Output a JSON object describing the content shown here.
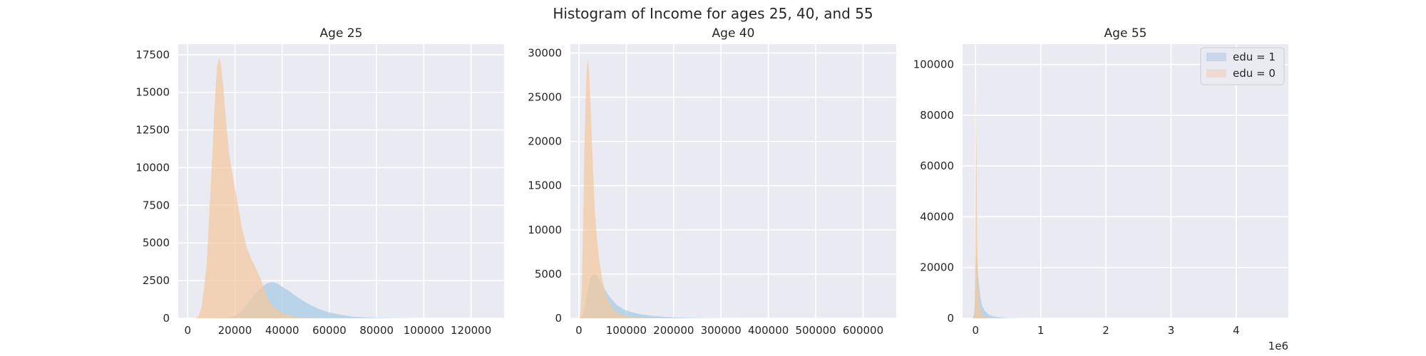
{
  "figure": {
    "title": "Histogram of Income for ages 25, 40, and 55"
  },
  "colors": {
    "edu_1": "#a6cbe3",
    "edu_0": "#f4c99e",
    "legend_edu_1": "#c9d6ea",
    "legend_edu_0": "#efd9d3"
  },
  "chart_data": [
    {
      "type": "histogram",
      "title": "Age 25",
      "xlabel": "",
      "ylabel": "",
      "xlim": [
        -4000,
        134000
      ],
      "ylim": [
        0,
        18200
      ],
      "xticks": [
        0,
        20000,
        40000,
        60000,
        80000,
        100000,
        120000
      ],
      "xtick_labels": [
        "0",
        "20000",
        "40000",
        "60000",
        "80000",
        "100000",
        "120000"
      ],
      "yticks": [
        0,
        2500,
        5000,
        7500,
        10000,
        12500,
        15000,
        17500
      ],
      "ytick_labels": [
        "0",
        "2500",
        "5000",
        "7500",
        "10000",
        "12500",
        "15000",
        "17500"
      ],
      "grid": true,
      "series": [
        {
          "name": "edu = 1",
          "color_key": "edu_1",
          "points": [
            [
              12000,
              0
            ],
            [
              17000,
              30
            ],
            [
              20000,
              150
            ],
            [
              23000,
              500
            ],
            [
              26000,
              1100
            ],
            [
              29000,
              1700
            ],
            [
              32000,
              2150
            ],
            [
              34000,
              2350
            ],
            [
              36000,
              2400
            ],
            [
              38000,
              2300
            ],
            [
              40000,
              2100
            ],
            [
              43000,
              1800
            ],
            [
              46000,
              1450
            ],
            [
              50000,
              1050
            ],
            [
              55000,
              650
            ],
            [
              60000,
              380
            ],
            [
              65000,
              220
            ],
            [
              70000,
              110
            ],
            [
              75000,
              60
            ],
            [
              80000,
              30
            ],
            [
              90000,
              10
            ],
            [
              100000,
              0
            ]
          ]
        },
        {
          "name": "edu = 0",
          "color_key": "edu_0",
          "points": [
            [
              3000,
              0
            ],
            [
              4500,
              100
            ],
            [
              6000,
              800
            ],
            [
              8000,
              3500
            ],
            [
              10000,
              9500
            ],
            [
              11500,
              14500
            ],
            [
              12500,
              16800
            ],
            [
              13300,
              17300
            ],
            [
              14000,
              17000
            ],
            [
              15000,
              15500
            ],
            [
              16000,
              13500
            ],
            [
              17500,
              11000
            ],
            [
              19000,
              9500
            ],
            [
              21000,
              7800
            ],
            [
              23000,
              6000
            ],
            [
              25000,
              4700
            ],
            [
              27000,
              3900
            ],
            [
              29000,
              3300
            ],
            [
              31000,
              2600
            ],
            [
              33000,
              1700
            ],
            [
              35000,
              1000
            ],
            [
              38000,
              550
            ],
            [
              42000,
              250
            ],
            [
              46000,
              100
            ],
            [
              50000,
              30
            ],
            [
              55000,
              0
            ]
          ]
        }
      ]
    },
    {
      "type": "histogram",
      "title": "Age 40",
      "xlabel": "",
      "ylabel": "",
      "xlim": [
        -18000,
        670000
      ],
      "ylim": [
        0,
        31000
      ],
      "xticks": [
        0,
        100000,
        200000,
        300000,
        400000,
        500000,
        600000
      ],
      "xtick_labels": [
        "0",
        "100000",
        "200000",
        "300000",
        "400000",
        "500000",
        "600000"
      ],
      "yticks": [
        0,
        5000,
        10000,
        15000,
        20000,
        25000,
        30000
      ],
      "ytick_labels": [
        "0",
        "5000",
        "10000",
        "15000",
        "20000",
        "25000",
        "30000"
      ],
      "grid": true,
      "series": [
        {
          "name": "edu = 1",
          "color_key": "edu_1",
          "points": [
            [
              2000,
              0
            ],
            [
              8000,
              300
            ],
            [
              12000,
              1200
            ],
            [
              18000,
              3000
            ],
            [
              24000,
              4600
            ],
            [
              30000,
              5000
            ],
            [
              36000,
              4900
            ],
            [
              42000,
              4500
            ],
            [
              50000,
              3700
            ],
            [
              60000,
              2800
            ],
            [
              70000,
              2100
            ],
            [
              80000,
              1500
            ],
            [
              95000,
              1000
            ],
            [
              110000,
              700
            ],
            [
              130000,
              450
            ],
            [
              150000,
              300
            ],
            [
              175000,
              180
            ],
            [
              200000,
              100
            ],
            [
              240000,
              40
            ],
            [
              300000,
              10
            ],
            [
              350000,
              0
            ]
          ]
        },
        {
          "name": "edu = 0",
          "color_key": "edu_0",
          "points": [
            [
              0,
              0
            ],
            [
              3000,
              400
            ],
            [
              6000,
              3000
            ],
            [
              9000,
              11000
            ],
            [
              12000,
              20000
            ],
            [
              15000,
              26500
            ],
            [
              18000,
              29200
            ],
            [
              21000,
              28500
            ],
            [
              24000,
              25000
            ],
            [
              27000,
              20500
            ],
            [
              30000,
              16500
            ],
            [
              34000,
              12000
            ],
            [
              38000,
              9000
            ],
            [
              43000,
              6500
            ],
            [
              50000,
              4200
            ],
            [
              58000,
              2500
            ],
            [
              66000,
              1600
            ],
            [
              75000,
              900
            ],
            [
              85000,
              500
            ],
            [
              100000,
              250
            ],
            [
              120000,
              100
            ],
            [
              150000,
              30
            ],
            [
              180000,
              0
            ]
          ]
        }
      ]
    },
    {
      "type": "histogram",
      "title": "Age 55",
      "xlabel": "",
      "ylabel": "",
      "x_offset_label": "1e6",
      "xlim": [
        -200000,
        4800000
      ],
      "ylim": [
        0,
        108000
      ],
      "xticks": [
        0,
        1000000,
        2000000,
        3000000,
        4000000
      ],
      "xtick_labels": [
        "0",
        "1",
        "2",
        "3",
        "4"
      ],
      "yticks": [
        0,
        20000,
        40000,
        60000,
        80000,
        100000
      ],
      "ytick_labels": [
        "0",
        "20000",
        "40000",
        "60000",
        "80000",
        "100000"
      ],
      "grid": true,
      "legend": {
        "location": "upper right",
        "entries": [
          "edu = 1",
          "edu = 0"
        ]
      },
      "series": [
        {
          "name": "edu = 1",
          "color_key": "edu_1",
          "points": [
            [
              -40000,
              0
            ],
            [
              -20000,
              2000
            ],
            [
              -5000,
              12000
            ],
            [
              10000,
              26000
            ],
            [
              25000,
              22000
            ],
            [
              45000,
              15000
            ],
            [
              70000,
              9000
            ],
            [
              100000,
              5000
            ],
            [
              140000,
              3000
            ],
            [
              200000,
              1500
            ],
            [
              280000,
              700
            ],
            [
              380000,
              300
            ],
            [
              500000,
              100
            ],
            [
              700000,
              30
            ],
            [
              1000000,
              0
            ]
          ]
        },
        {
          "name": "edu = 0",
          "color_key": "edu_0",
          "points": [
            [
              -30000,
              0
            ],
            [
              -15000,
              4000
            ],
            [
              -5000,
              30000
            ],
            [
              5000,
              92000
            ],
            [
              15000,
              60000
            ],
            [
              25000,
              30000
            ],
            [
              40000,
              14000
            ],
            [
              60000,
              6000
            ],
            [
              85000,
              2500
            ],
            [
              120000,
              900
            ],
            [
              170000,
              300
            ],
            [
              250000,
              80
            ],
            [
              400000,
              0
            ]
          ]
        }
      ]
    }
  ]
}
